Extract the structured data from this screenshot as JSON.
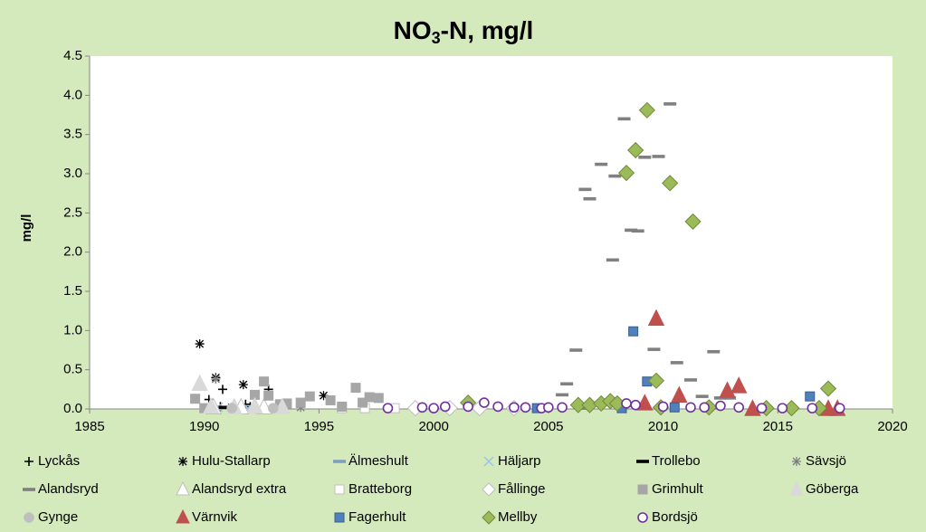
{
  "chart_data": {
    "type": "scatter",
    "title": [
      "NO",
      "3",
      "-N, mg/l"
    ],
    "y_label": "mg/l",
    "xlim": [
      1985,
      2020
    ],
    "xticks": [
      1985,
      1990,
      1995,
      2000,
      2005,
      2010,
      2015,
      2020
    ],
    "ylim": [
      0,
      4.5
    ],
    "yticks": [
      {
        "value": 0,
        "label": "0.0"
      },
      {
        "value": 0.5,
        "label": "0.5"
      },
      {
        "value": 1,
        "label": "1.0"
      },
      {
        "value": 1.5,
        "label": "1.5"
      },
      {
        "value": 2,
        "label": "2.0"
      },
      {
        "value": 2.5,
        "label": "2.5"
      },
      {
        "value": 3,
        "label": "3.0"
      },
      {
        "value": 3.5,
        "label": "3.5"
      },
      {
        "value": 4,
        "label": "4.0"
      },
      {
        "value": 4.5,
        "label": "4.5"
      }
    ],
    "legend": "bottom",
    "series": [
      {
        "name": "Lyckås",
        "marker": "plus",
        "color": "#000000",
        "fill": "none",
        "x": [
          1990.2,
          1990.7,
          1990.8,
          1991.8,
          1992.0,
          1992.8
        ],
        "y": [
          0.12,
          0.03,
          0.25,
          0.06,
          0.03,
          0.25
        ]
      },
      {
        "name": "Hulu-Stallarp",
        "marker": "star",
        "color": "#000000",
        "fill": "none",
        "x": [
          1989.8,
          1990.5,
          1991.2,
          1991.7,
          1995.2
        ],
        "y": [
          0.83,
          0.4,
          0.02,
          0.31,
          0.17
        ]
      },
      {
        "name": "Älmeshult",
        "marker": "dash",
        "color": "#7f9fbf",
        "fill": "#7f9fbf",
        "x": [
          1991.5,
          1993.0
        ],
        "y": [
          0.02,
          0.01
        ]
      },
      {
        "name": "Häljarp",
        "marker": "x",
        "color": "#9dc3e6",
        "fill": "none",
        "x": [
          1990.6,
          1991.9,
          1993.2
        ],
        "y": [
          0.02,
          0.01,
          0.01
        ]
      },
      {
        "name": "Trollebo",
        "marker": "dash",
        "color": "#000000",
        "fill": "#000000",
        "x": [
          1990.9,
          1992.4
        ],
        "y": [
          0.02,
          0.01
        ]
      },
      {
        "name": "Sävsjö",
        "marker": "star",
        "color": "#7f7f7f",
        "fill": "none",
        "x": [
          1990.5,
          1994.2
        ],
        "y": [
          0.38,
          0.02
        ]
      },
      {
        "name": "Alandsryd",
        "marker": "dash",
        "color": "#808080",
        "fill": "#808080",
        "x": [
          2005.6,
          2005.8,
          2006.2,
          2006.5,
          2006.6,
          2006.8,
          2007.3,
          2007.8,
          2007.9,
          2008.3,
          2008.6,
          2008.9,
          2009.2,
          2009.6,
          2009.8,
          2010.3,
          2010.6,
          2011.2,
          2011.7,
          2012.2,
          2012.5,
          2012.9
        ],
        "y": [
          0.18,
          0.32,
          0.75,
          0.01,
          2.8,
          2.68,
          3.12,
          1.9,
          2.97,
          3.7,
          2.28,
          2.27,
          3.21,
          0.76,
          3.22,
          3.89,
          0.59,
          0.37,
          0.16,
          0.73,
          0.14,
          0.14
        ]
      },
      {
        "name": "Alandsryd extra",
        "marker": "triangle",
        "color": "#bfbfbf",
        "fill": "#ffffff",
        "x": [
          1990.4,
          1991.6,
          1992.6
        ],
        "y": [
          0.02,
          0.02,
          0.02
        ]
      },
      {
        "name": "Bratteborg",
        "marker": "square",
        "color": "#bfbfbf",
        "fill": "#ffffff",
        "x": [
          1996.0,
          1997.0,
          1998.3
        ],
        "y": [
          0.01,
          0.01,
          0.01
        ]
      },
      {
        "name": "Fållinge",
        "marker": "diamond",
        "color": "#bfbfbf",
        "fill": "#ffffff",
        "x": [
          1999.2,
          2000.7,
          2002.0,
          2003.5
        ],
        "y": [
          0.01,
          0.01,
          0.01,
          0.01
        ]
      },
      {
        "name": "Grimhult",
        "marker": "square",
        "color": "#a6a6a6",
        "fill": "#a6a6a6",
        "x": [
          1989.6,
          1990.0,
          1992.2,
          1992.6,
          1992.8,
          1993.3,
          1993.6,
          1994.2,
          1994.6,
          1995.5,
          1996.0,
          1996.6,
          1996.9,
          1997.2,
          1997.6
        ],
        "y": [
          0.13,
          0.01,
          0.18,
          0.35,
          0.17,
          0.06,
          0.07,
          0.08,
          0.16,
          0.11,
          0.03,
          0.27,
          0.08,
          0.15,
          0.14
        ]
      },
      {
        "name": "Göberga",
        "marker": "triangle",
        "color": "#d9d9d9",
        "fill": "#d9d9d9",
        "x": [
          1989.8,
          1990.3,
          1991.3,
          1992.2,
          1993.4
        ],
        "y": [
          0.32,
          0.03,
          0.02,
          0.03,
          0.02
        ]
      },
      {
        "name": "Gynge",
        "marker": "circle",
        "color": "#bfbfbf",
        "fill": "#bfbfbf",
        "x": [
          1991.2,
          1993.0
        ],
        "y": [
          0.01,
          0.01
        ]
      },
      {
        "name": "Värnvik",
        "marker": "triangle",
        "color": "#c0504d",
        "fill": "#c0504d",
        "x": [
          2009.2,
          2009.7,
          2010.7,
          2012.8,
          2013.3,
          2013.9,
          2017.2,
          2017.6
        ],
        "y": [
          0.07,
          1.15,
          0.17,
          0.23,
          0.29,
          0.0,
          0.0,
          0.0
        ]
      },
      {
        "name": "Fagerhult",
        "marker": "square",
        "color": "#385d8a",
        "fill": "#4f81bd",
        "x": [
          2004.5,
          2008.2,
          2008.7,
          2009.3,
          2010.5,
          2016.4
        ],
        "y": [
          0.01,
          0.01,
          0.99,
          0.35,
          0.02,
          0.16
        ]
      },
      {
        "name": "Mellby",
        "marker": "diamond",
        "color": "#71893f",
        "fill": "#9bbb59",
        "x": [
          2001.5,
          2006.3,
          2006.8,
          2007.3,
          2007.7,
          2008.0,
          2008.4,
          2008.8,
          2009.3,
          2009.7,
          2009.9,
          2010.3,
          2011.3,
          2012.0,
          2014.5,
          2015.6,
          2016.8,
          2017.2
        ],
        "y": [
          0.08,
          0.05,
          0.05,
          0.07,
          0.1,
          0.07,
          3.01,
          3.3,
          3.81,
          0.36,
          0.02,
          2.88,
          2.39,
          0.02,
          0.01,
          0.01,
          0.01,
          0.26
        ]
      },
      {
        "name": "Bordsjö",
        "marker": "circle",
        "color": "#7030a0",
        "fill": "#ffffff",
        "x": [
          1998.0,
          1999.5,
          2000.0,
          2000.5,
          2001.5,
          2002.2,
          2002.8,
          2003.5,
          2004.0,
          2004.7,
          2005.0,
          2005.6,
          2008.4,
          2008.8,
          2010.0,
          2011.2,
          2011.8,
          2012.5,
          2013.3,
          2014.3,
          2015.2,
          2016.5,
          2017.7
        ],
        "y": [
          0.01,
          0.02,
          0.01,
          0.03,
          0.03,
          0.08,
          0.03,
          0.02,
          0.02,
          0.01,
          0.02,
          0.02,
          0.07,
          0.05,
          0.03,
          0.02,
          0.02,
          0.04,
          0.02,
          0.01,
          0.01,
          0.01,
          0.01
        ]
      }
    ]
  }
}
